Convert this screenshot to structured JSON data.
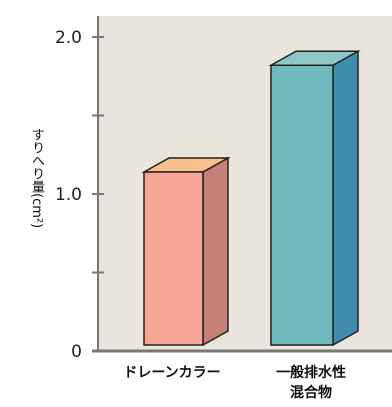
{
  "chart_data": {
    "type": "bar",
    "categories": [
      "ドレーンカラー",
      "一般排水性\n混合物"
    ],
    "values": [
      1.14,
      1.82
    ],
    "ylabel": "すりへり量(cm²)",
    "ylim": [
      0,
      2.0
    ],
    "yticks": [
      {
        "value": 0,
        "label": "0"
      },
      {
        "value": 1.0,
        "label": "1.0"
      },
      {
        "value": 2.0,
        "label": "2.0"
      }
    ],
    "minor_ticks": [
      0.5,
      1.5
    ],
    "colors": {
      "plot_background": "#e9e5dc",
      "bar_1_front": "#f7a595",
      "bar_1_top": "#f7c08c",
      "bar_1_side": "#c78079",
      "bar_2_front": "#6fb8bc",
      "bar_2_top": "#8fc7c4",
      "bar_2_side": "#3f8cae",
      "axis": "#777777"
    }
  }
}
